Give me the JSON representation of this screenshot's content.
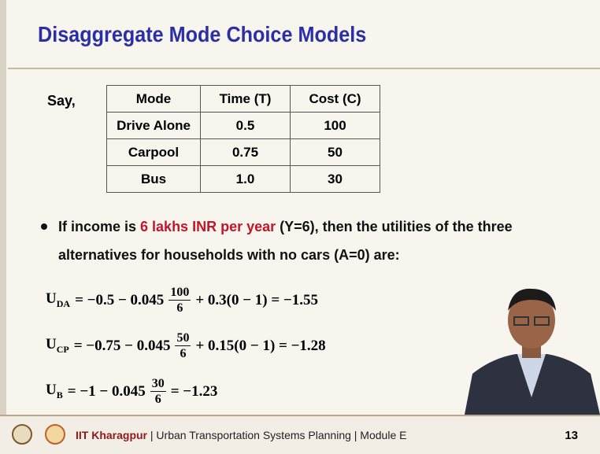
{
  "header": {
    "title": "Disaggregate Mode Choice Models"
  },
  "say": "Say,",
  "table": {
    "columns": [
      "Mode",
      "Time (T)",
      "Cost (C)"
    ],
    "rows": [
      [
        "Drive Alone",
        "0.5",
        "100"
      ],
      [
        "Carpool",
        "0.75",
        "50"
      ],
      [
        "Bus",
        "1.0",
        "30"
      ]
    ]
  },
  "bullet": {
    "before": "If income is ",
    "highlight": "6 lakhs INR per year",
    "after_line1": " (Y=6), then the utilities of the three",
    "line2": "alternatives for households with no cars (A=0) are:"
  },
  "equations": [
    {
      "lhs": "U",
      "sub": "DA",
      "before": "= −0.5 − 0.045",
      "num": "100",
      "den": "6",
      "after": "+ 0.3(0 − 1) = −1.55"
    },
    {
      "lhs": "U",
      "sub": "CP",
      "before": "= −0.75 − 0.045",
      "num": "50",
      "den": "6",
      "after": "+ 0.15(0 − 1) = −1.28"
    },
    {
      "lhs": "U",
      "sub": "B",
      "before": "= −1 − 0.045",
      "num": "30",
      "den": "6",
      "after": "= −1.23"
    }
  ],
  "footer": {
    "institute": "IIT Kharagpur",
    "course": " | Urban Transportation Systems Planning | Module E",
    "page": "13"
  }
}
